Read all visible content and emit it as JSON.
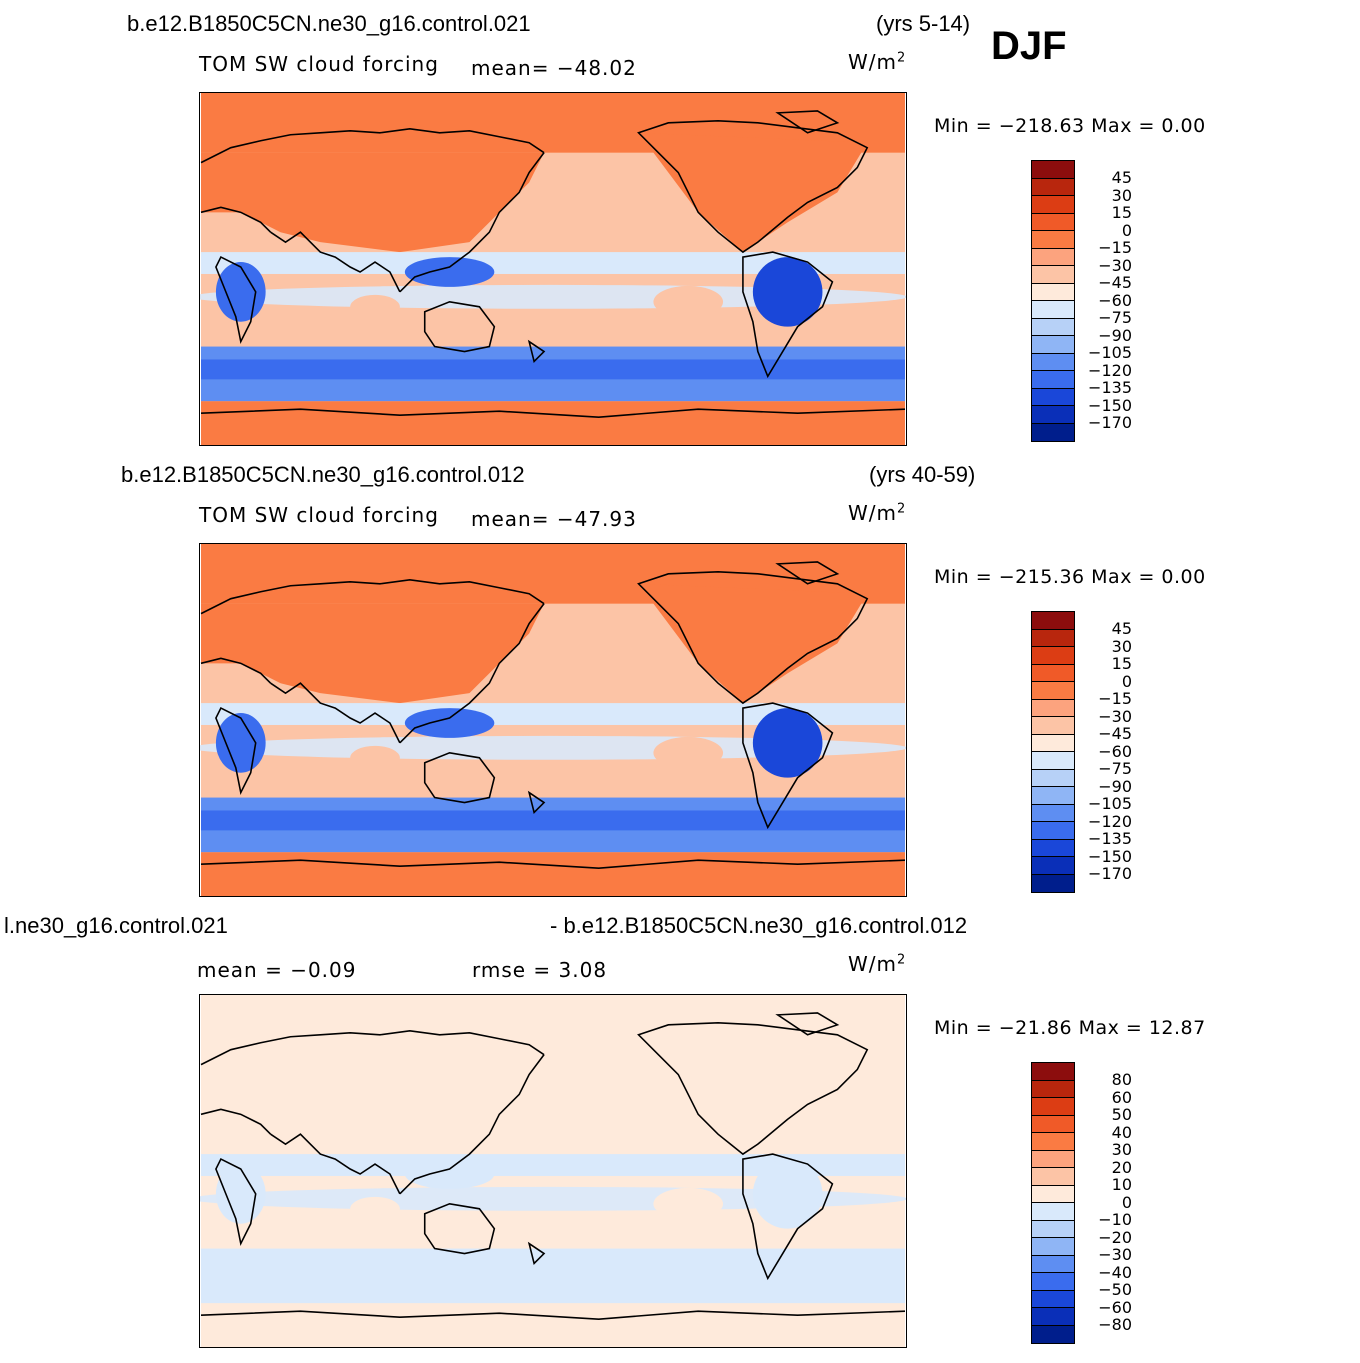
{
  "season": "DJF",
  "panels": [
    {
      "case_left": "b.e12.B1850C5CN.ne30_g16.control.021",
      "case_right": "(yrs 5-14)",
      "var_label": "TOM SW cloud forcing",
      "stat1": "mean=  −48.02",
      "stat2": "",
      "units": "W/m",
      "units_sup": "2",
      "min_max": "Min  =  −218.63  Max  =     0.00",
      "colorbar": {
        "labels": [
          "45",
          "30",
          "15",
          "0",
          "−15",
          "−30",
          "−45",
          "−60",
          "−75",
          "−90",
          "−105",
          "−120",
          "−135",
          "−150",
          "−170"
        ],
        "colors": [
          "#8c0d0d",
          "#b8260d",
          "#dc3d14",
          "#f05a28",
          "#fa7b43",
          "#fca37e",
          "#fcc4a6",
          "#feeadb",
          "#d9e9fb",
          "#b7d1f7",
          "#8fb5f5",
          "#5e8ef2",
          "#3a6cee",
          "#1a47d9",
          "#0a2fb8",
          "#001e8c"
        ]
      },
      "field": {
        "ocean_base": "#fcc4a6",
        "land_high": "#fa7b43",
        "polar": "#fa7b43",
        "southern_ocean": "#5e8ef2",
        "southern_ocean_deep": "#3a6cee",
        "itcz": "#d9e9fb",
        "africa_south": "#3a6cee",
        "amazon": "#1a47d9",
        "maritime_cont": "#3a6cee"
      }
    },
    {
      "case_left": "b.e12.B1850C5CN.ne30_g16.control.012",
      "case_right": "(yrs 40-59)",
      "var_label": "TOM SW cloud forcing",
      "stat1": "mean=  −47.93",
      "stat2": "",
      "units": "W/m",
      "units_sup": "2",
      "min_max": "Min  =  −215.36  Max  =     0.00",
      "colorbar": {
        "labels": [
          "45",
          "30",
          "15",
          "0",
          "−15",
          "−30",
          "−45",
          "−60",
          "−75",
          "−90",
          "−105",
          "−120",
          "−135",
          "−150",
          "−170"
        ],
        "colors": [
          "#8c0d0d",
          "#b8260d",
          "#dc3d14",
          "#f05a28",
          "#fa7b43",
          "#fca37e",
          "#fcc4a6",
          "#feeadb",
          "#d9e9fb",
          "#b7d1f7",
          "#8fb5f5",
          "#5e8ef2",
          "#3a6cee",
          "#1a47d9",
          "#0a2fb8",
          "#001e8c"
        ]
      },
      "field": {
        "ocean_base": "#fcc4a6",
        "land_high": "#fa7b43",
        "polar": "#fa7b43",
        "southern_ocean": "#5e8ef2",
        "southern_ocean_deep": "#3a6cee",
        "itcz": "#d9e9fb",
        "africa_south": "#3a6cee",
        "amazon": "#1a47d9",
        "maritime_cont": "#3a6cee"
      }
    },
    {
      "case_left": "l.ne30_g16.control.021",
      "case_right": "- b.e12.B1850C5CN.ne30_g16.control.012",
      "var_label": "",
      "stat1": "mean =    −0.09",
      "stat2": "rmse  =     3.08",
      "units": "W/m",
      "units_sup": "2",
      "min_max": "Min  =  −21.86  Max  =    12.87",
      "colorbar": {
        "labels": [
          "80",
          "60",
          "50",
          "40",
          "30",
          "20",
          "10",
          "0",
          "−10",
          "−20",
          "−30",
          "−40",
          "−50",
          "−60",
          "−80"
        ],
        "colors": [
          "#8c0d0d",
          "#b8260d",
          "#dc3d14",
          "#f05a28",
          "#fa7b43",
          "#fca37e",
          "#fcc4a6",
          "#feeadb",
          "#d9e9fb",
          "#b7d1f7",
          "#8fb5f5",
          "#5e8ef2",
          "#3a6cee",
          "#1a47d9",
          "#0a2fb8",
          "#001e8c"
        ]
      },
      "field": {
        "ocean_base": "#feeadb",
        "land_high": "#feeadb",
        "polar": "#feeadb",
        "southern_ocean": "#d9e9fb",
        "southern_ocean_deep": "#d9e9fb",
        "itcz": "#d9e9fb",
        "africa_south": "#d9e9fb",
        "amazon": "#d9e9fb",
        "maritime_cont": "#d9e9fb"
      }
    }
  ]
}
